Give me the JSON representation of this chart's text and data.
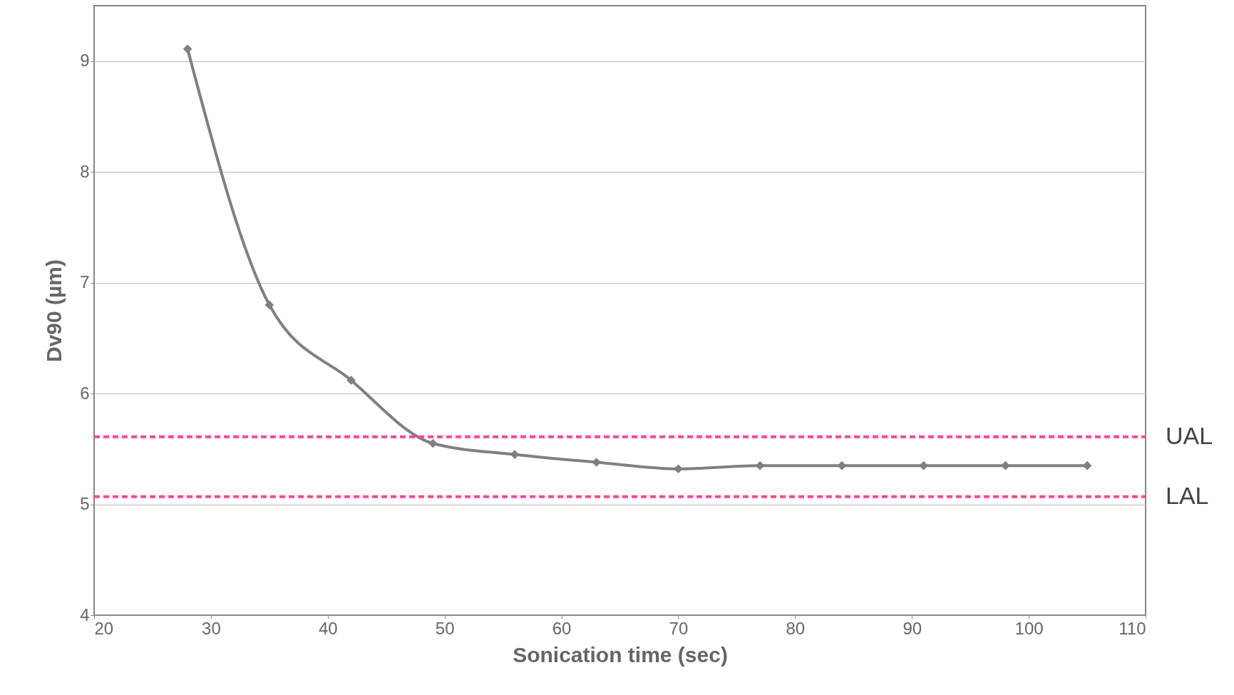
{
  "chart_data": {
    "type": "line",
    "xlabel": "Sonication time (sec)",
    "ylabel": "Dv90 (µm)",
    "x": [
      28,
      35,
      42,
      49,
      56,
      63,
      70,
      77,
      84,
      91,
      98,
      105
    ],
    "series": [
      {
        "color": "#808080",
        "values": [
          9.11,
          6.8,
          6.12,
          5.55,
          5.45,
          5.38,
          5.32,
          5.35,
          5.35,
          5.35,
          5.35,
          5.35
        ]
      }
    ],
    "xlim": [
      20,
      110
    ],
    "xticks": [
      20,
      30,
      40,
      50,
      60,
      70,
      80,
      90,
      100,
      110
    ],
    "ylim": [
      4,
      9.5
    ],
    "yticks": [
      4,
      5,
      6,
      7,
      8,
      9
    ],
    "ref_lines": [
      {
        "axis": "y",
        "value": 5.61,
        "label": "UAL",
        "color": "#ff4499",
        "line_style": "dashed"
      },
      {
        "axis": "y",
        "value": 5.07,
        "label": "LAL",
        "color": "#ff4499",
        "line_style": "dashed"
      }
    ],
    "grid": "y",
    "marker": "diamond",
    "line_style": "solid"
  }
}
